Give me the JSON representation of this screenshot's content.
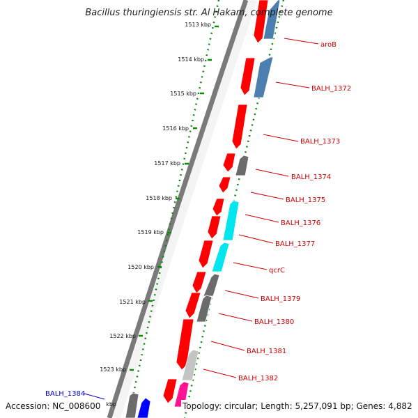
{
  "title": "Bacillus thuringiensis str. Al Hakam, complete genome",
  "footer": {
    "accession": "Accession: NC_008600",
    "topology": "Topology: circular; Length: 5,257,091 bp; Genes: 4,882"
  },
  "scale_ticks": [
    "1513 kbp",
    "1514 kbp",
    "1515 kbp",
    "1516 kbp",
    "1517 kbp",
    "1518 kbp",
    "1519 kbp",
    "1520 kbp",
    "1521 kbp",
    "1522 kbp",
    "1523 kbp",
    "kbp"
  ],
  "right_labels": [
    "aroB",
    "BALH_1372",
    "BALH_1373",
    "BALH_1374",
    "BALH_1375",
    "BALH_1376",
    "BALH_1377",
    "qcrC",
    "BALH_1379",
    "BALH_1380",
    "BALH_1381",
    "BALH_1382"
  ],
  "left_labels": [
    "BALH_1384"
  ],
  "colors": {
    "strand_forward": "#ff0000",
    "gene_blue": "#4a7fb0",
    "gene_gray": "#666666",
    "gene_cyan": "#00e5ee",
    "gene_light_gray": "#bbbbbb",
    "gene_magenta": "#ff1493",
    "gene_dark_blue": "#0000ff",
    "label_red": "#cc0000",
    "label_blue": "#0000cc",
    "tick_green": "#008000"
  }
}
